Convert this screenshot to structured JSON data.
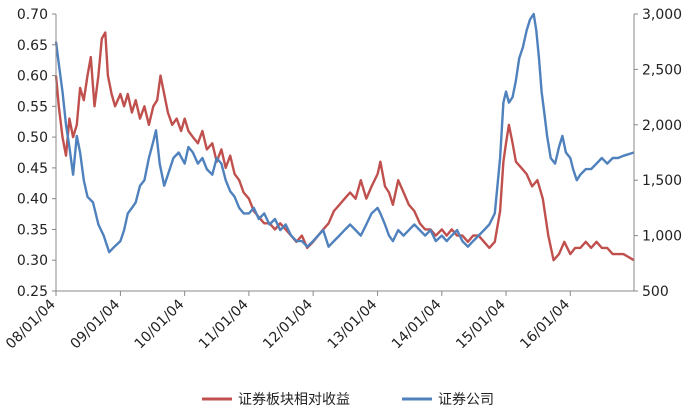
{
  "chart_data": {
    "type": "line",
    "title": "",
    "xlabel": "",
    "ylabel": "",
    "x_ticks": [
      "08/01/04",
      "09/01/04",
      "10/01/04",
      "11/01/04",
      "12/01/04",
      "13/01/04",
      "14/01/04",
      "15/01/04",
      "16/01/04"
    ],
    "x_range": [
      "2008-01-04",
      "2016-12-31"
    ],
    "y_left": {
      "range": [
        0.25,
        0.7
      ],
      "ticks": [
        "0.25",
        "0.30",
        "0.35",
        "0.40",
        "0.45",
        "0.50",
        "0.55",
        "0.60",
        "0.65",
        "0.70"
      ]
    },
    "y_right": {
      "range": [
        500,
        3000
      ],
      "ticks": [
        "500",
        "1,000",
        "1,500",
        "2,000",
        "2,500",
        "3,000"
      ]
    },
    "grid": false,
    "legend_position": "bottom",
    "series": [
      {
        "name": "证券板块相对收益",
        "axis": "left",
        "color": "#c0504d",
        "points": [
          [
            "2008-01-04",
            0.6
          ],
          [
            "2008-01-20",
            0.55
          ],
          [
            "2008-02-10",
            0.5
          ],
          [
            "2008-03-01",
            0.47
          ],
          [
            "2008-03-20",
            0.53
          ],
          [
            "2008-04-10",
            0.5
          ],
          [
            "2008-05-01",
            0.52
          ],
          [
            "2008-05-20",
            0.58
          ],
          [
            "2008-06-10",
            0.56
          ],
          [
            "2008-07-01",
            0.6
          ],
          [
            "2008-07-20",
            0.63
          ],
          [
            "2008-08-10",
            0.55
          ],
          [
            "2008-09-01",
            0.6
          ],
          [
            "2008-09-20",
            0.66
          ],
          [
            "2008-10-10",
            0.67
          ],
          [
            "2008-10-25",
            0.6
          ],
          [
            "2008-11-15",
            0.57
          ],
          [
            "2008-12-05",
            0.55
          ],
          [
            "2009-01-04",
            0.57
          ],
          [
            "2009-01-25",
            0.55
          ],
          [
            "2009-02-15",
            0.57
          ],
          [
            "2009-03-10",
            0.54
          ],
          [
            "2009-04-01",
            0.56
          ],
          [
            "2009-04-25",
            0.53
          ],
          [
            "2009-05-20",
            0.55
          ],
          [
            "2009-06-15",
            0.52
          ],
          [
            "2009-07-10",
            0.55
          ],
          [
            "2009-08-01",
            0.56
          ],
          [
            "2009-08-20",
            0.6
          ],
          [
            "2009-09-10",
            0.57
          ],
          [
            "2009-10-01",
            0.54
          ],
          [
            "2009-10-25",
            0.52
          ],
          [
            "2009-11-20",
            0.53
          ],
          [
            "2009-12-15",
            0.51
          ],
          [
            "2010-01-04",
            0.53
          ],
          [
            "2010-01-25",
            0.51
          ],
          [
            "2010-02-20",
            0.5
          ],
          [
            "2010-03-20",
            0.49
          ],
          [
            "2010-04-15",
            0.51
          ],
          [
            "2010-05-10",
            0.48
          ],
          [
            "2010-06-10",
            0.49
          ],
          [
            "2010-07-05",
            0.46
          ],
          [
            "2010-08-01",
            0.48
          ],
          [
            "2010-08-25",
            0.45
          ],
          [
            "2010-09-20",
            0.47
          ],
          [
            "2010-10-15",
            0.44
          ],
          [
            "2010-11-10",
            0.43
          ],
          [
            "2010-12-05",
            0.41
          ],
          [
            "2011-01-04",
            0.4
          ],
          [
            "2011-02-01",
            0.38
          ],
          [
            "2011-03-01",
            0.37
          ],
          [
            "2011-04-01",
            0.36
          ],
          [
            "2011-05-01",
            0.36
          ],
          [
            "2011-06-01",
            0.35
          ],
          [
            "2011-07-01",
            0.36
          ],
          [
            "2011-08-01",
            0.35
          ],
          [
            "2011-09-01",
            0.34
          ],
          [
            "2011-10-01",
            0.33
          ],
          [
            "2011-11-01",
            0.34
          ],
          [
            "2011-12-01",
            0.32
          ],
          [
            "2012-01-04",
            0.33
          ],
          [
            "2012-02-01",
            0.34
          ],
          [
            "2012-03-01",
            0.35
          ],
          [
            "2012-04-01",
            0.36
          ],
          [
            "2012-05-01",
            0.38
          ],
          [
            "2012-06-01",
            0.39
          ],
          [
            "2012-07-01",
            0.4
          ],
          [
            "2012-08-01",
            0.41
          ],
          [
            "2012-09-01",
            0.4
          ],
          [
            "2012-10-01",
            0.43
          ],
          [
            "2012-11-01",
            0.4
          ],
          [
            "2012-12-01",
            0.42
          ],
          [
            "2013-01-04",
            0.44
          ],
          [
            "2013-01-20",
            0.46
          ],
          [
            "2013-02-15",
            0.42
          ],
          [
            "2013-03-10",
            0.41
          ],
          [
            "2013-04-01",
            0.39
          ],
          [
            "2013-05-01",
            0.43
          ],
          [
            "2013-06-01",
            0.41
          ],
          [
            "2013-07-01",
            0.39
          ],
          [
            "2013-08-01",
            0.38
          ],
          [
            "2013-09-01",
            0.36
          ],
          [
            "2013-10-01",
            0.35
          ],
          [
            "2013-11-01",
            0.35
          ],
          [
            "2013-12-01",
            0.34
          ],
          [
            "2014-01-04",
            0.35
          ],
          [
            "2014-02-01",
            0.34
          ],
          [
            "2014-03-01",
            0.35
          ],
          [
            "2014-04-01",
            0.34
          ],
          [
            "2014-05-01",
            0.34
          ],
          [
            "2014-06-01",
            0.33
          ],
          [
            "2014-07-01",
            0.34
          ],
          [
            "2014-08-01",
            0.34
          ],
          [
            "2014-09-01",
            0.33
          ],
          [
            "2014-10-01",
            0.32
          ],
          [
            "2014-11-01",
            0.33
          ],
          [
            "2014-12-01",
            0.38
          ],
          [
            "2014-12-20",
            0.46
          ],
          [
            "2015-01-04",
            0.49
          ],
          [
            "2015-01-20",
            0.52
          ],
          [
            "2015-02-10",
            0.49
          ],
          [
            "2015-03-01",
            0.46
          ],
          [
            "2015-04-01",
            0.45
          ],
          [
            "2015-05-01",
            0.44
          ],
          [
            "2015-06-01",
            0.42
          ],
          [
            "2015-07-01",
            0.43
          ],
          [
            "2015-08-01",
            0.4
          ],
          [
            "2015-09-01",
            0.34
          ],
          [
            "2015-10-01",
            0.3
          ],
          [
            "2015-11-01",
            0.31
          ],
          [
            "2015-12-01",
            0.33
          ],
          [
            "2016-01-04",
            0.31
          ],
          [
            "2016-02-01",
            0.32
          ],
          [
            "2016-03-01",
            0.32
          ],
          [
            "2016-04-01",
            0.33
          ],
          [
            "2016-05-01",
            0.32
          ],
          [
            "2016-06-01",
            0.33
          ],
          [
            "2016-07-01",
            0.32
          ],
          [
            "2016-08-01",
            0.32
          ],
          [
            "2016-09-01",
            0.31
          ],
          [
            "2016-10-01",
            0.31
          ],
          [
            "2016-11-01",
            0.31
          ],
          [
            "2016-12-31",
            0.3
          ]
        ]
      },
      {
        "name": "证券公司",
        "axis": "right",
        "color": "#4f81bd",
        "points": [
          [
            "2008-01-04",
            2750
          ],
          [
            "2008-01-20",
            2550
          ],
          [
            "2008-02-10",
            2300
          ],
          [
            "2008-03-01",
            2000
          ],
          [
            "2008-03-20",
            1800
          ],
          [
            "2008-04-10",
            1550
          ],
          [
            "2008-05-01",
            1900
          ],
          [
            "2008-05-20",
            1750
          ],
          [
            "2008-06-10",
            1500
          ],
          [
            "2008-07-01",
            1350
          ],
          [
            "2008-08-01",
            1300
          ],
          [
            "2008-09-01",
            1100
          ],
          [
            "2008-10-01",
            1000
          ],
          [
            "2008-11-01",
            850
          ],
          [
            "2008-12-01",
            900
          ],
          [
            "2009-01-04",
            950
          ],
          [
            "2009-01-25",
            1050
          ],
          [
            "2009-02-15",
            1200
          ],
          [
            "2009-03-10",
            1250
          ],
          [
            "2009-04-01",
            1300
          ],
          [
            "2009-04-25",
            1450
          ],
          [
            "2009-05-20",
            1500
          ],
          [
            "2009-06-15",
            1700
          ],
          [
            "2009-07-10",
            1850
          ],
          [
            "2009-07-25",
            1950
          ],
          [
            "2009-08-15",
            1650
          ],
          [
            "2009-09-10",
            1450
          ],
          [
            "2009-10-01",
            1550
          ],
          [
            "2009-11-01",
            1700
          ],
          [
            "2009-12-01",
            1750
          ],
          [
            "2010-01-04",
            1650
          ],
          [
            "2010-01-25",
            1800
          ],
          [
            "2010-02-20",
            1750
          ],
          [
            "2010-03-20",
            1650
          ],
          [
            "2010-04-15",
            1700
          ],
          [
            "2010-05-10",
            1600
          ],
          [
            "2010-06-10",
            1550
          ],
          [
            "2010-07-05",
            1700
          ],
          [
            "2010-08-01",
            1650
          ],
          [
            "2010-08-25",
            1500
          ],
          [
            "2010-09-20",
            1400
          ],
          [
            "2010-10-15",
            1350
          ],
          [
            "2010-11-10",
            1250
          ],
          [
            "2010-12-05",
            1200
          ],
          [
            "2011-01-04",
            1200
          ],
          [
            "2011-02-01",
            1250
          ],
          [
            "2011-03-01",
            1150
          ],
          [
            "2011-04-01",
            1200
          ],
          [
            "2011-05-01",
            1100
          ],
          [
            "2011-06-01",
            1150
          ],
          [
            "2011-07-01",
            1050
          ],
          [
            "2011-08-01",
            1100
          ],
          [
            "2011-09-01",
            1000
          ],
          [
            "2011-10-01",
            950
          ],
          [
            "2011-11-01",
            950
          ],
          [
            "2011-12-01",
            900
          ],
          [
            "2012-01-04",
            950
          ],
          [
            "2012-02-01",
            1000
          ],
          [
            "2012-03-01",
            1050
          ],
          [
            "2012-04-01",
            900
          ],
          [
            "2012-05-01",
            950
          ],
          [
            "2012-06-01",
            1000
          ],
          [
            "2012-07-01",
            1050
          ],
          [
            "2012-08-01",
            1100
          ],
          [
            "2012-09-01",
            1050
          ],
          [
            "2012-10-01",
            1000
          ],
          [
            "2012-11-01",
            1100
          ],
          [
            "2012-12-01",
            1200
          ],
          [
            "2013-01-04",
            1250
          ],
          [
            "2013-01-20",
            1200
          ],
          [
            "2013-02-15",
            1100
          ],
          [
            "2013-03-10",
            1000
          ],
          [
            "2013-04-01",
            950
          ],
          [
            "2013-05-01",
            1050
          ],
          [
            "2013-06-01",
            1000
          ],
          [
            "2013-07-01",
            1050
          ],
          [
            "2013-08-01",
            1100
          ],
          [
            "2013-09-01",
            1050
          ],
          [
            "2013-10-01",
            1000
          ],
          [
            "2013-11-01",
            1050
          ],
          [
            "2013-12-01",
            950
          ],
          [
            "2014-01-04",
            1000
          ],
          [
            "2014-02-01",
            950
          ],
          [
            "2014-03-01",
            1000
          ],
          [
            "2014-04-01",
            1050
          ],
          [
            "2014-05-01",
            950
          ],
          [
            "2014-06-01",
            900
          ],
          [
            "2014-07-01",
            950
          ],
          [
            "2014-08-01",
            1000
          ],
          [
            "2014-09-01",
            1050
          ],
          [
            "2014-10-01",
            1100
          ],
          [
            "2014-11-01",
            1200
          ],
          [
            "2014-12-01",
            1700
          ],
          [
            "2014-12-20",
            2200
          ],
          [
            "2015-01-04",
            2300
          ],
          [
            "2015-01-20",
            2200
          ],
          [
            "2015-02-10",
            2250
          ],
          [
            "2015-03-01",
            2400
          ],
          [
            "2015-03-20",
            2600
          ],
          [
            "2015-04-10",
            2700
          ],
          [
            "2015-05-01",
            2850
          ],
          [
            "2015-05-20",
            2950
          ],
          [
            "2015-06-10",
            3000
          ],
          [
            "2015-06-25",
            2850
          ],
          [
            "2015-07-10",
            2600
          ],
          [
            "2015-07-25",
            2300
          ],
          [
            "2015-08-10",
            2100
          ],
          [
            "2015-08-25",
            1900
          ],
          [
            "2015-09-15",
            1700
          ],
          [
            "2015-10-10",
            1650
          ],
          [
            "2015-11-01",
            1800
          ],
          [
            "2015-11-20",
            1900
          ],
          [
            "2015-12-10",
            1750
          ],
          [
            "2016-01-04",
            1700
          ],
          [
            "2016-01-20",
            1600
          ],
          [
            "2016-02-10",
            1500
          ],
          [
            "2016-03-01",
            1550
          ],
          [
            "2016-04-01",
            1600
          ],
          [
            "2016-05-01",
            1600
          ],
          [
            "2016-06-01",
            1650
          ],
          [
            "2016-07-01",
            1700
          ],
          [
            "2016-08-01",
            1650
          ],
          [
            "2016-09-01",
            1700
          ],
          [
            "2016-10-01",
            1700
          ],
          [
            "2016-11-01",
            1720
          ],
          [
            "2016-12-31",
            1750
          ]
        ]
      }
    ]
  }
}
